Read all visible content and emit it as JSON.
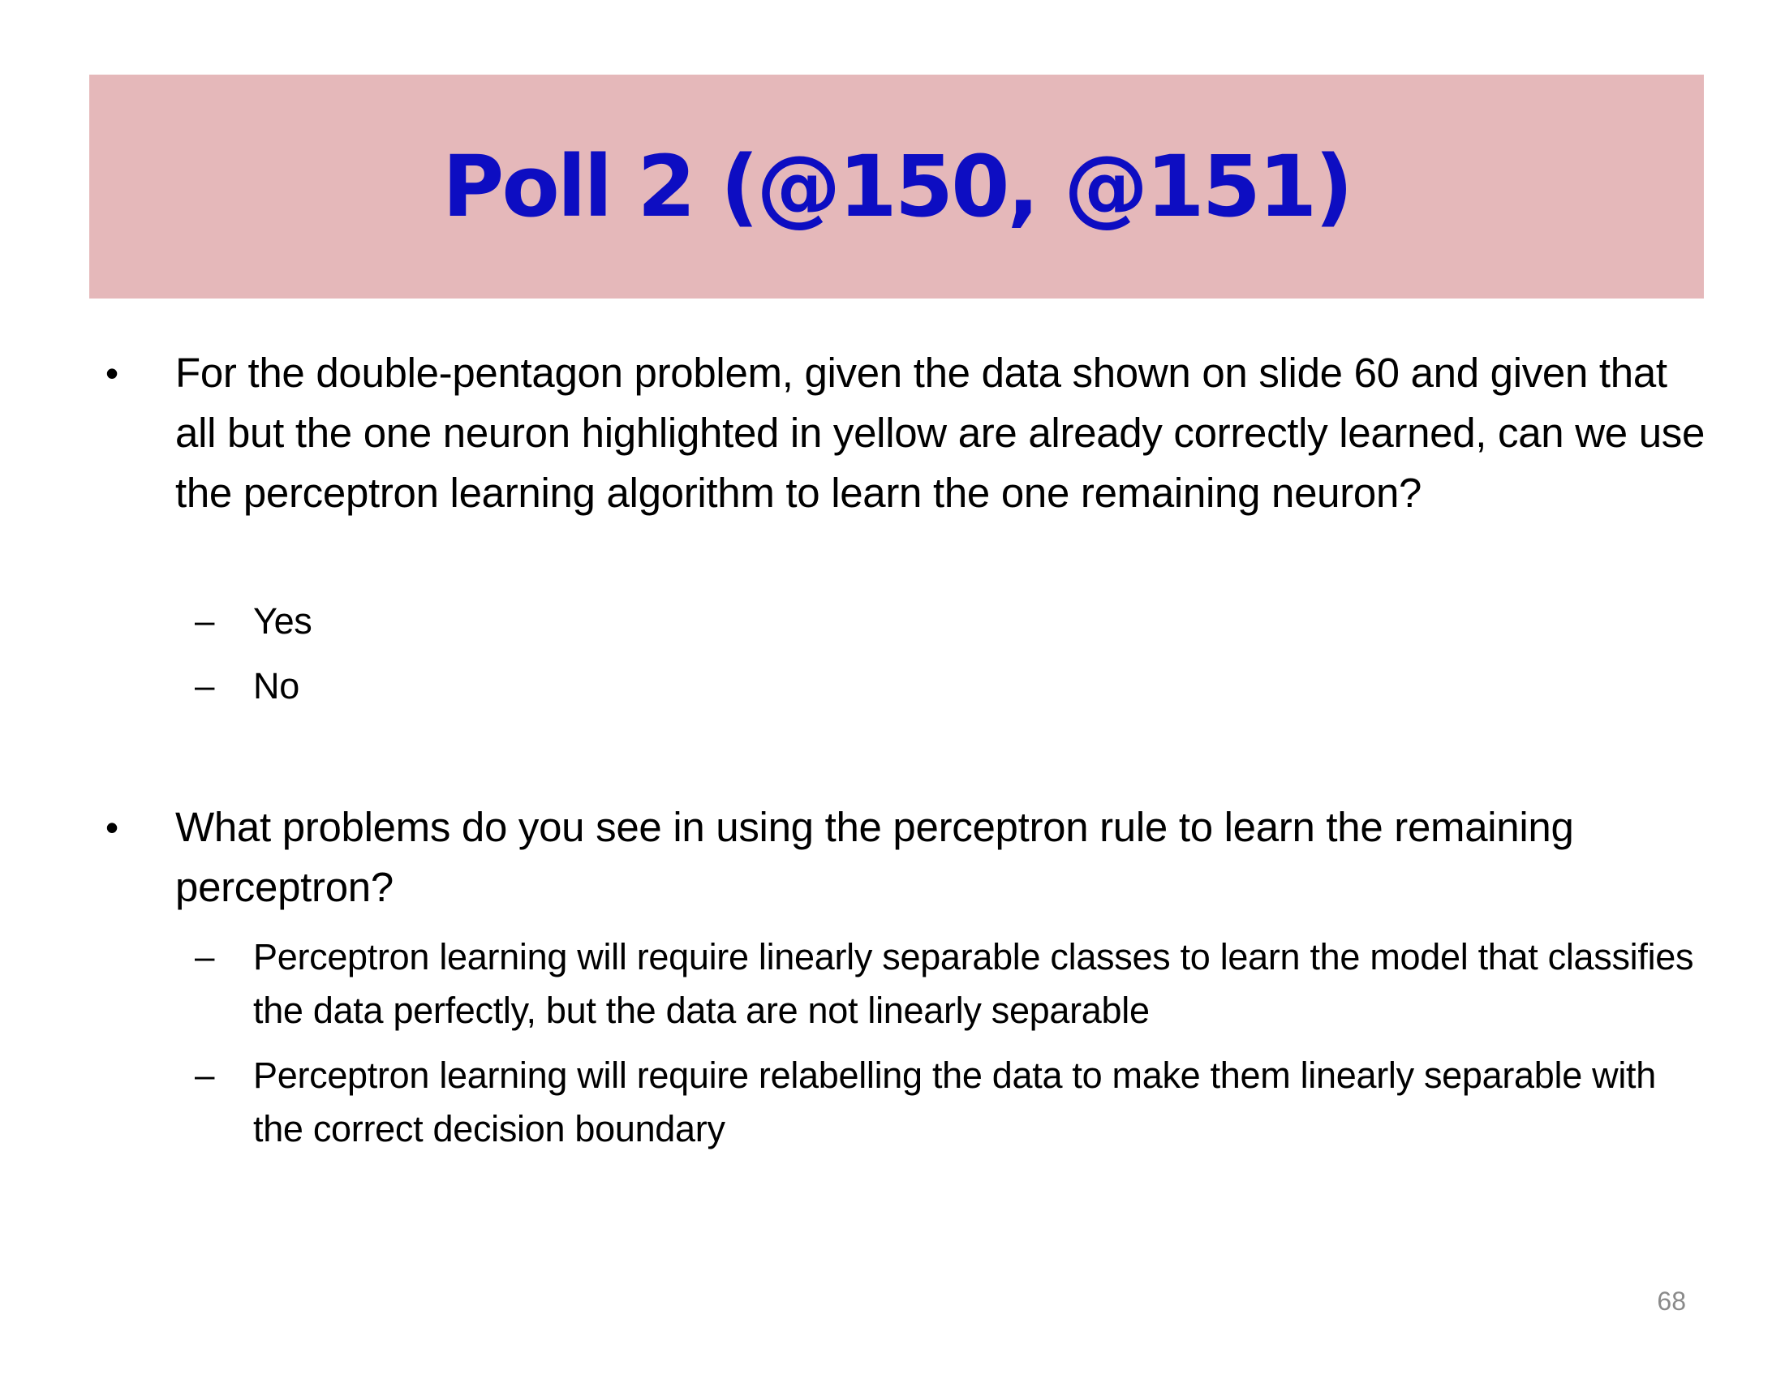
{
  "slide": {
    "title": "Poll 2 (@150, @151)",
    "title_color": "#0d0dc2",
    "title_band_color": "#e5b8ba",
    "page_number": "68"
  },
  "questions": [
    {
      "marker": "•",
      "text": "For the double-pentagon problem, given the data shown on slide 60 and given that all but the one neuron highlighted in yellow are already correctly learned, can we use the perceptron learning algorithm to learn the one remaining neuron?",
      "options": [
        {
          "marker": "–",
          "text": "Yes"
        },
        {
          "marker": "–",
          "text": "No"
        }
      ]
    },
    {
      "marker": "•",
      "text": "What problems do you see in using the perceptron rule to learn the remaining perceptron?",
      "options": [
        {
          "marker": "–",
          "text": "Perceptron learning will require linearly separable classes to learn the model that classifies the data perfectly, but the data are not linearly separable"
        },
        {
          "marker": "–",
          "text": "Perceptron learning will require relabelling the data to make them linearly separable with the correct decision boundary"
        }
      ]
    }
  ]
}
